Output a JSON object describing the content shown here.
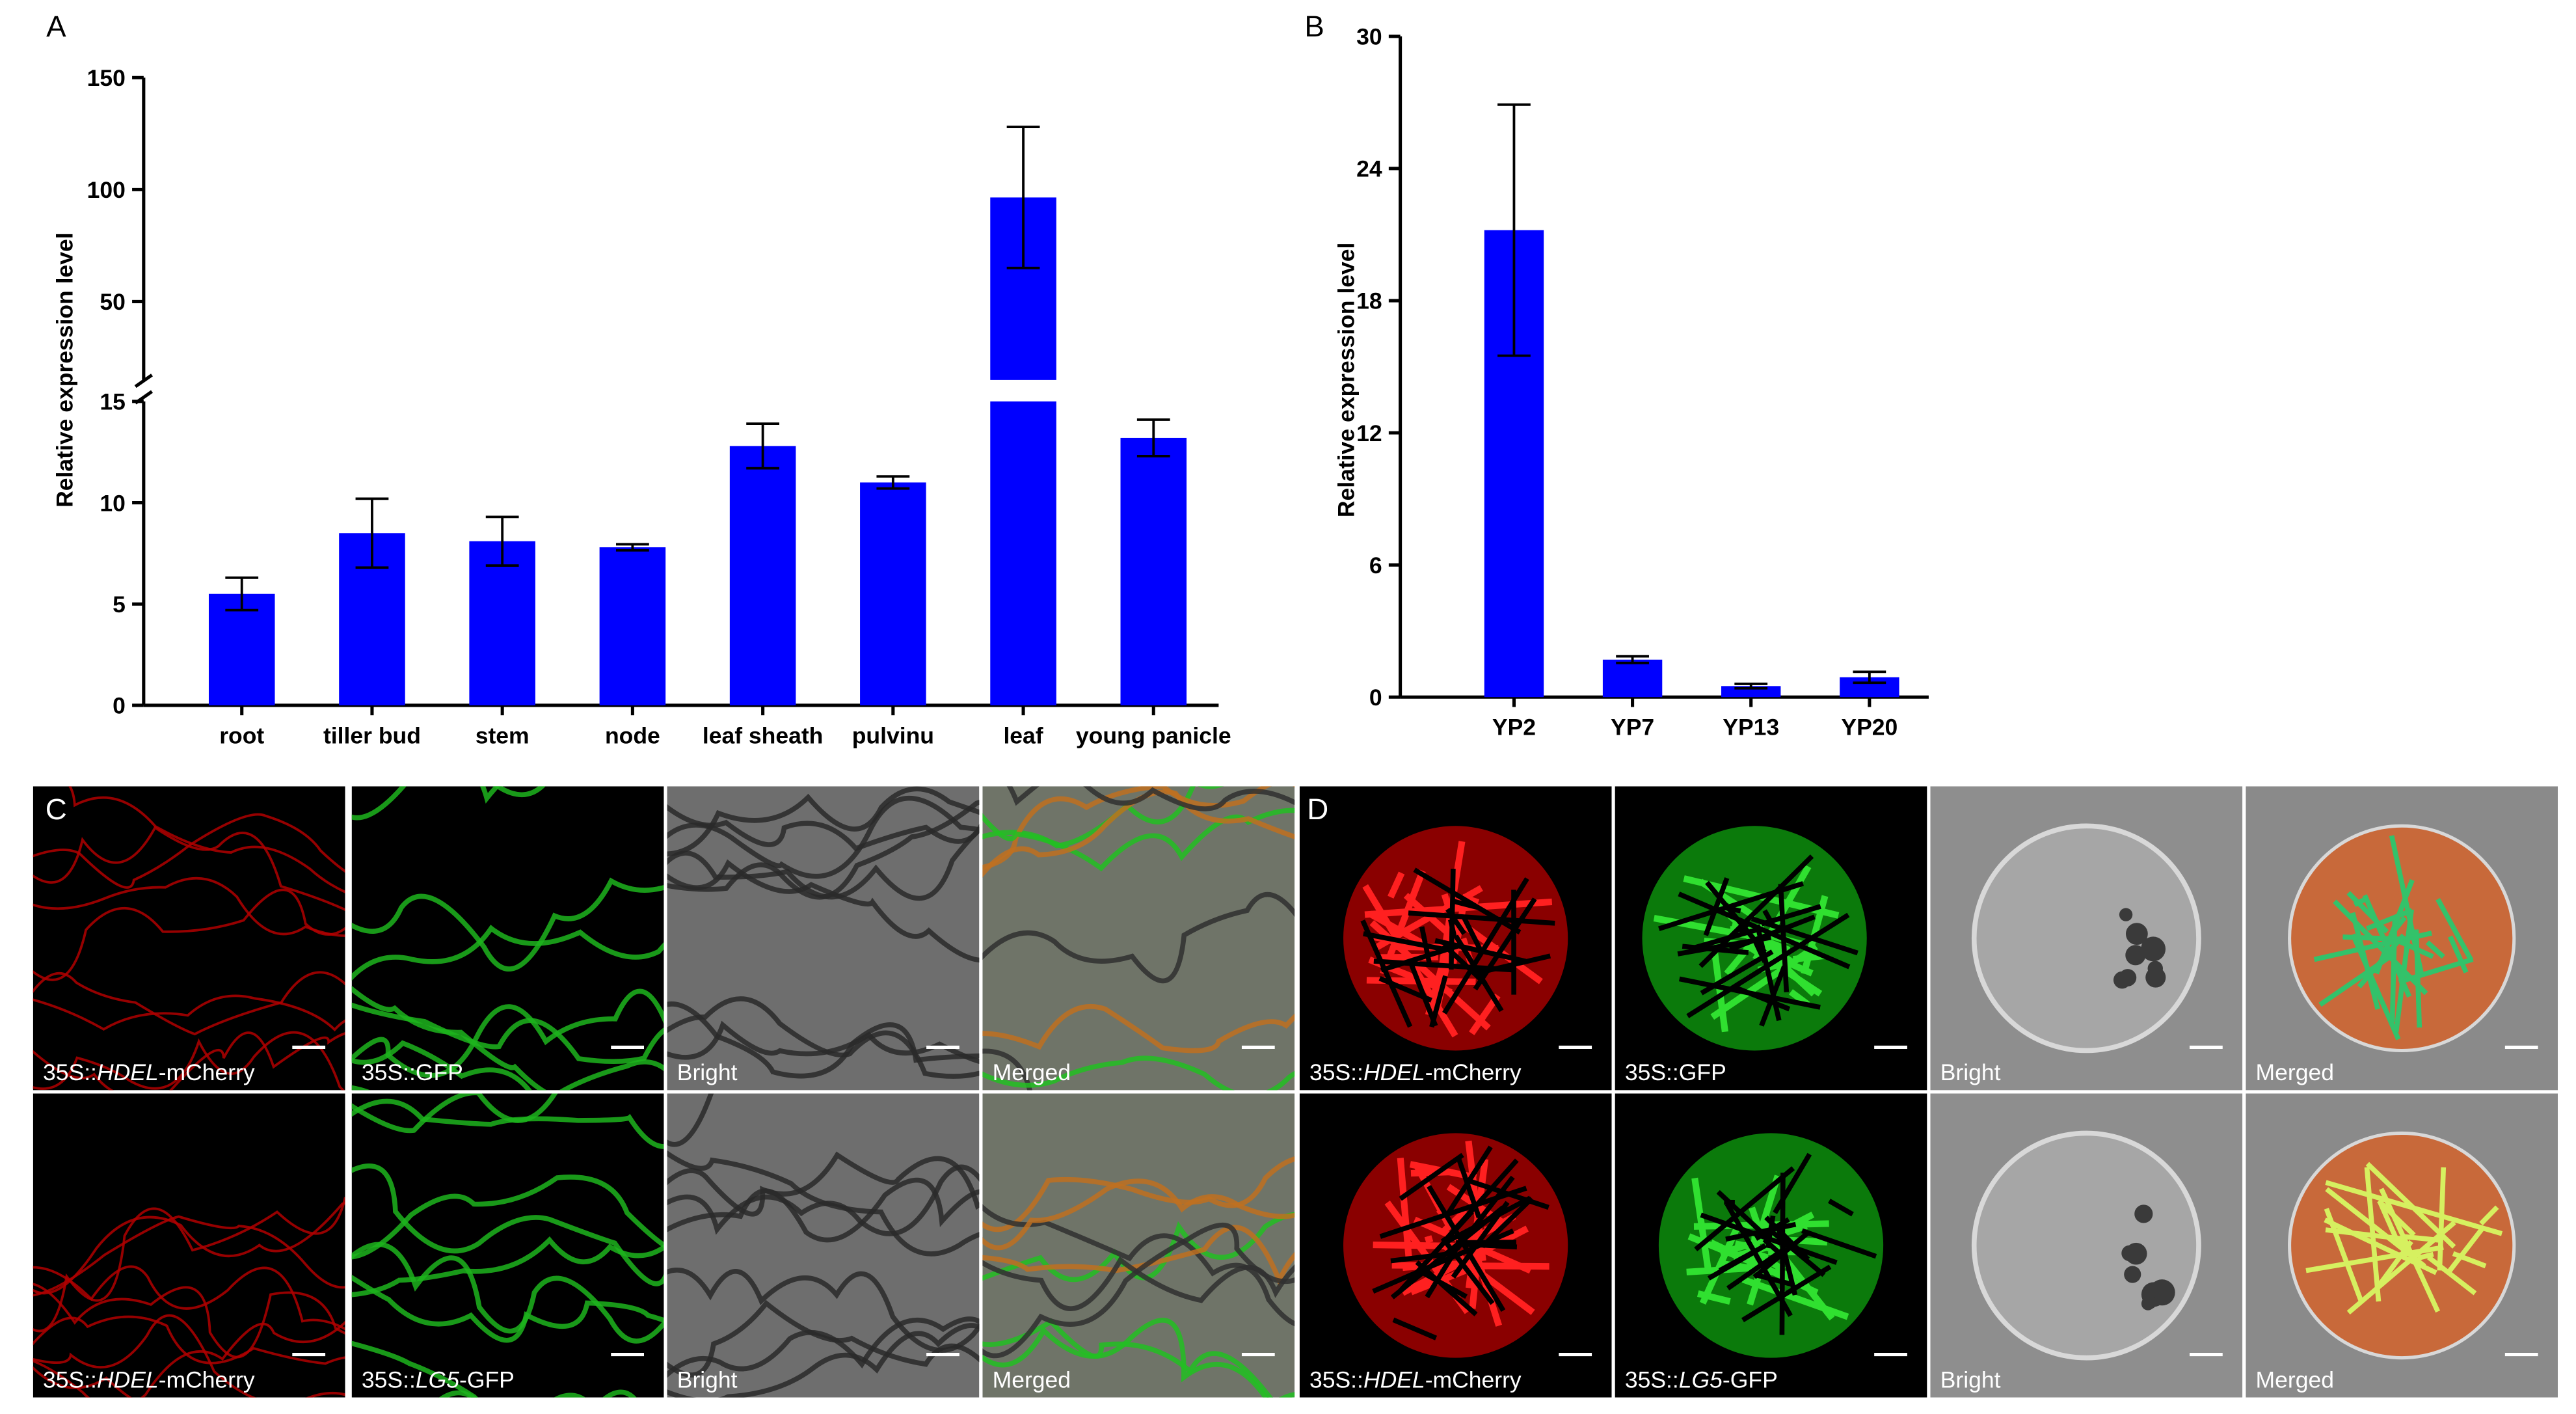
{
  "chart_data": [
    {
      "type": "bar",
      "panel": "A",
      "y_label": "Relative expression level",
      "categories": [
        "root",
        "tiller bud",
        "stem",
        "node",
        "leaf sheath",
        "pulvinu",
        "leaf",
        "young panicle"
      ],
      "values": [
        5.5,
        8.5,
        8.1,
        7.8,
        12.8,
        11.0,
        96.5,
        13.2
      ],
      "errors": [
        0.8,
        1.7,
        1.2,
        0.15,
        1.1,
        0.3,
        31.5,
        0.9
      ],
      "color": "#0000ff",
      "ylim": [
        0,
        150
      ],
      "axis_break": 15,
      "yticks": [
        0,
        5,
        10,
        15,
        50,
        100,
        150
      ]
    },
    {
      "type": "bar",
      "panel": "B",
      "y_label": "Relative expression level",
      "categories": [
        "YP2",
        "YP7",
        "YP13",
        "YP20"
      ],
      "values": [
        21.2,
        1.7,
        0.5,
        0.9
      ],
      "errors": [
        5.7,
        0.15,
        0.1,
        0.25
      ],
      "color": "#0000ff",
      "ylim": [
        0,
        30
      ],
      "yticks": [
        0,
        6,
        12,
        18,
        24,
        30
      ]
    }
  ],
  "micrographs": [
    {
      "panel": "C",
      "rows": [
        [
          {
            "prefix": "35S::",
            "gene": "HDEL",
            "suffix": "-mCherry"
          },
          "35S::GFP",
          "Bright",
          "Merged"
        ],
        [
          {
            "prefix": "35S::",
            "gene": "HDEL",
            "suffix": "-mCherry"
          },
          {
            "prefix": "35S::",
            "gene": "LG5",
            "suffix": "-GFP"
          },
          "Bright",
          "Merged"
        ]
      ]
    },
    {
      "panel": "D",
      "rows": [
        [
          {
            "prefix": "35S::",
            "gene": "HDEL",
            "suffix": "-mCherry"
          },
          "35S::GFP",
          "Bright",
          "Merged"
        ],
        [
          {
            "prefix": "35S::",
            "gene": "HDEL",
            "suffix": "-mCherry"
          },
          {
            "prefix": "35S::",
            "gene": "LG5",
            "suffix": "-GFP"
          },
          "Bright",
          "Merged"
        ]
      ]
    }
  ]
}
